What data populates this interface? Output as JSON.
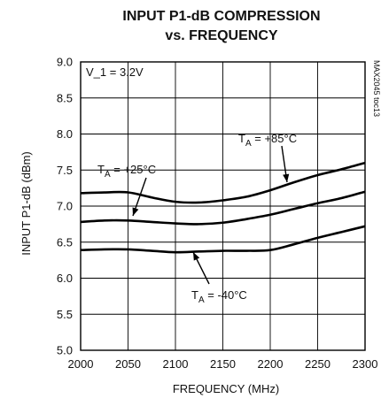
{
  "chart_data": {
    "type": "line",
    "title": "INPUT P1-dB COMPRESSION",
    "subtitle": "vs. FREQUENCY",
    "xlabel": "FREQUENCY (MHz)",
    "ylabel": "INPUT P1-dB (dBm)",
    "xlim": [
      2000,
      2300
    ],
    "ylim": [
      5.0,
      9.0
    ],
    "x_ticks": [
      "2000",
      "2050",
      "2100",
      "2150",
      "2200",
      "2250",
      "2300"
    ],
    "y_ticks": [
      "9.0",
      "8.5",
      "8.0",
      "7.5",
      "7.0",
      "6.5",
      "6.0",
      "5.5",
      "5.0"
    ],
    "grid": true,
    "annotation": "V_1 = 3.2V",
    "figure_ref": "MAX2045 toc13",
    "x": [
      2000,
      2025,
      2050,
      2075,
      2100,
      2125,
      2150,
      2175,
      2200,
      2225,
      2250,
      2275,
      2300
    ],
    "series": [
      {
        "label": "T",
        "sub": "A",
        "rest": " = +85°C",
        "values": [
          7.18,
          7.19,
          7.19,
          7.12,
          7.06,
          7.05,
          7.08,
          7.13,
          7.22,
          7.33,
          7.43,
          7.51,
          7.6
        ]
      },
      {
        "label": "T",
        "sub": "A",
        "rest": " = +25°C",
        "values": [
          6.78,
          6.8,
          6.8,
          6.78,
          6.76,
          6.75,
          6.77,
          6.82,
          6.88,
          6.96,
          7.04,
          7.11,
          7.2
        ]
      },
      {
        "label": "T",
        "sub": "A",
        "rest": " = -40°C",
        "values": [
          6.39,
          6.4,
          6.4,
          6.38,
          6.36,
          6.37,
          6.38,
          6.38,
          6.39,
          6.47,
          6.56,
          6.64,
          6.72
        ]
      }
    ]
  }
}
